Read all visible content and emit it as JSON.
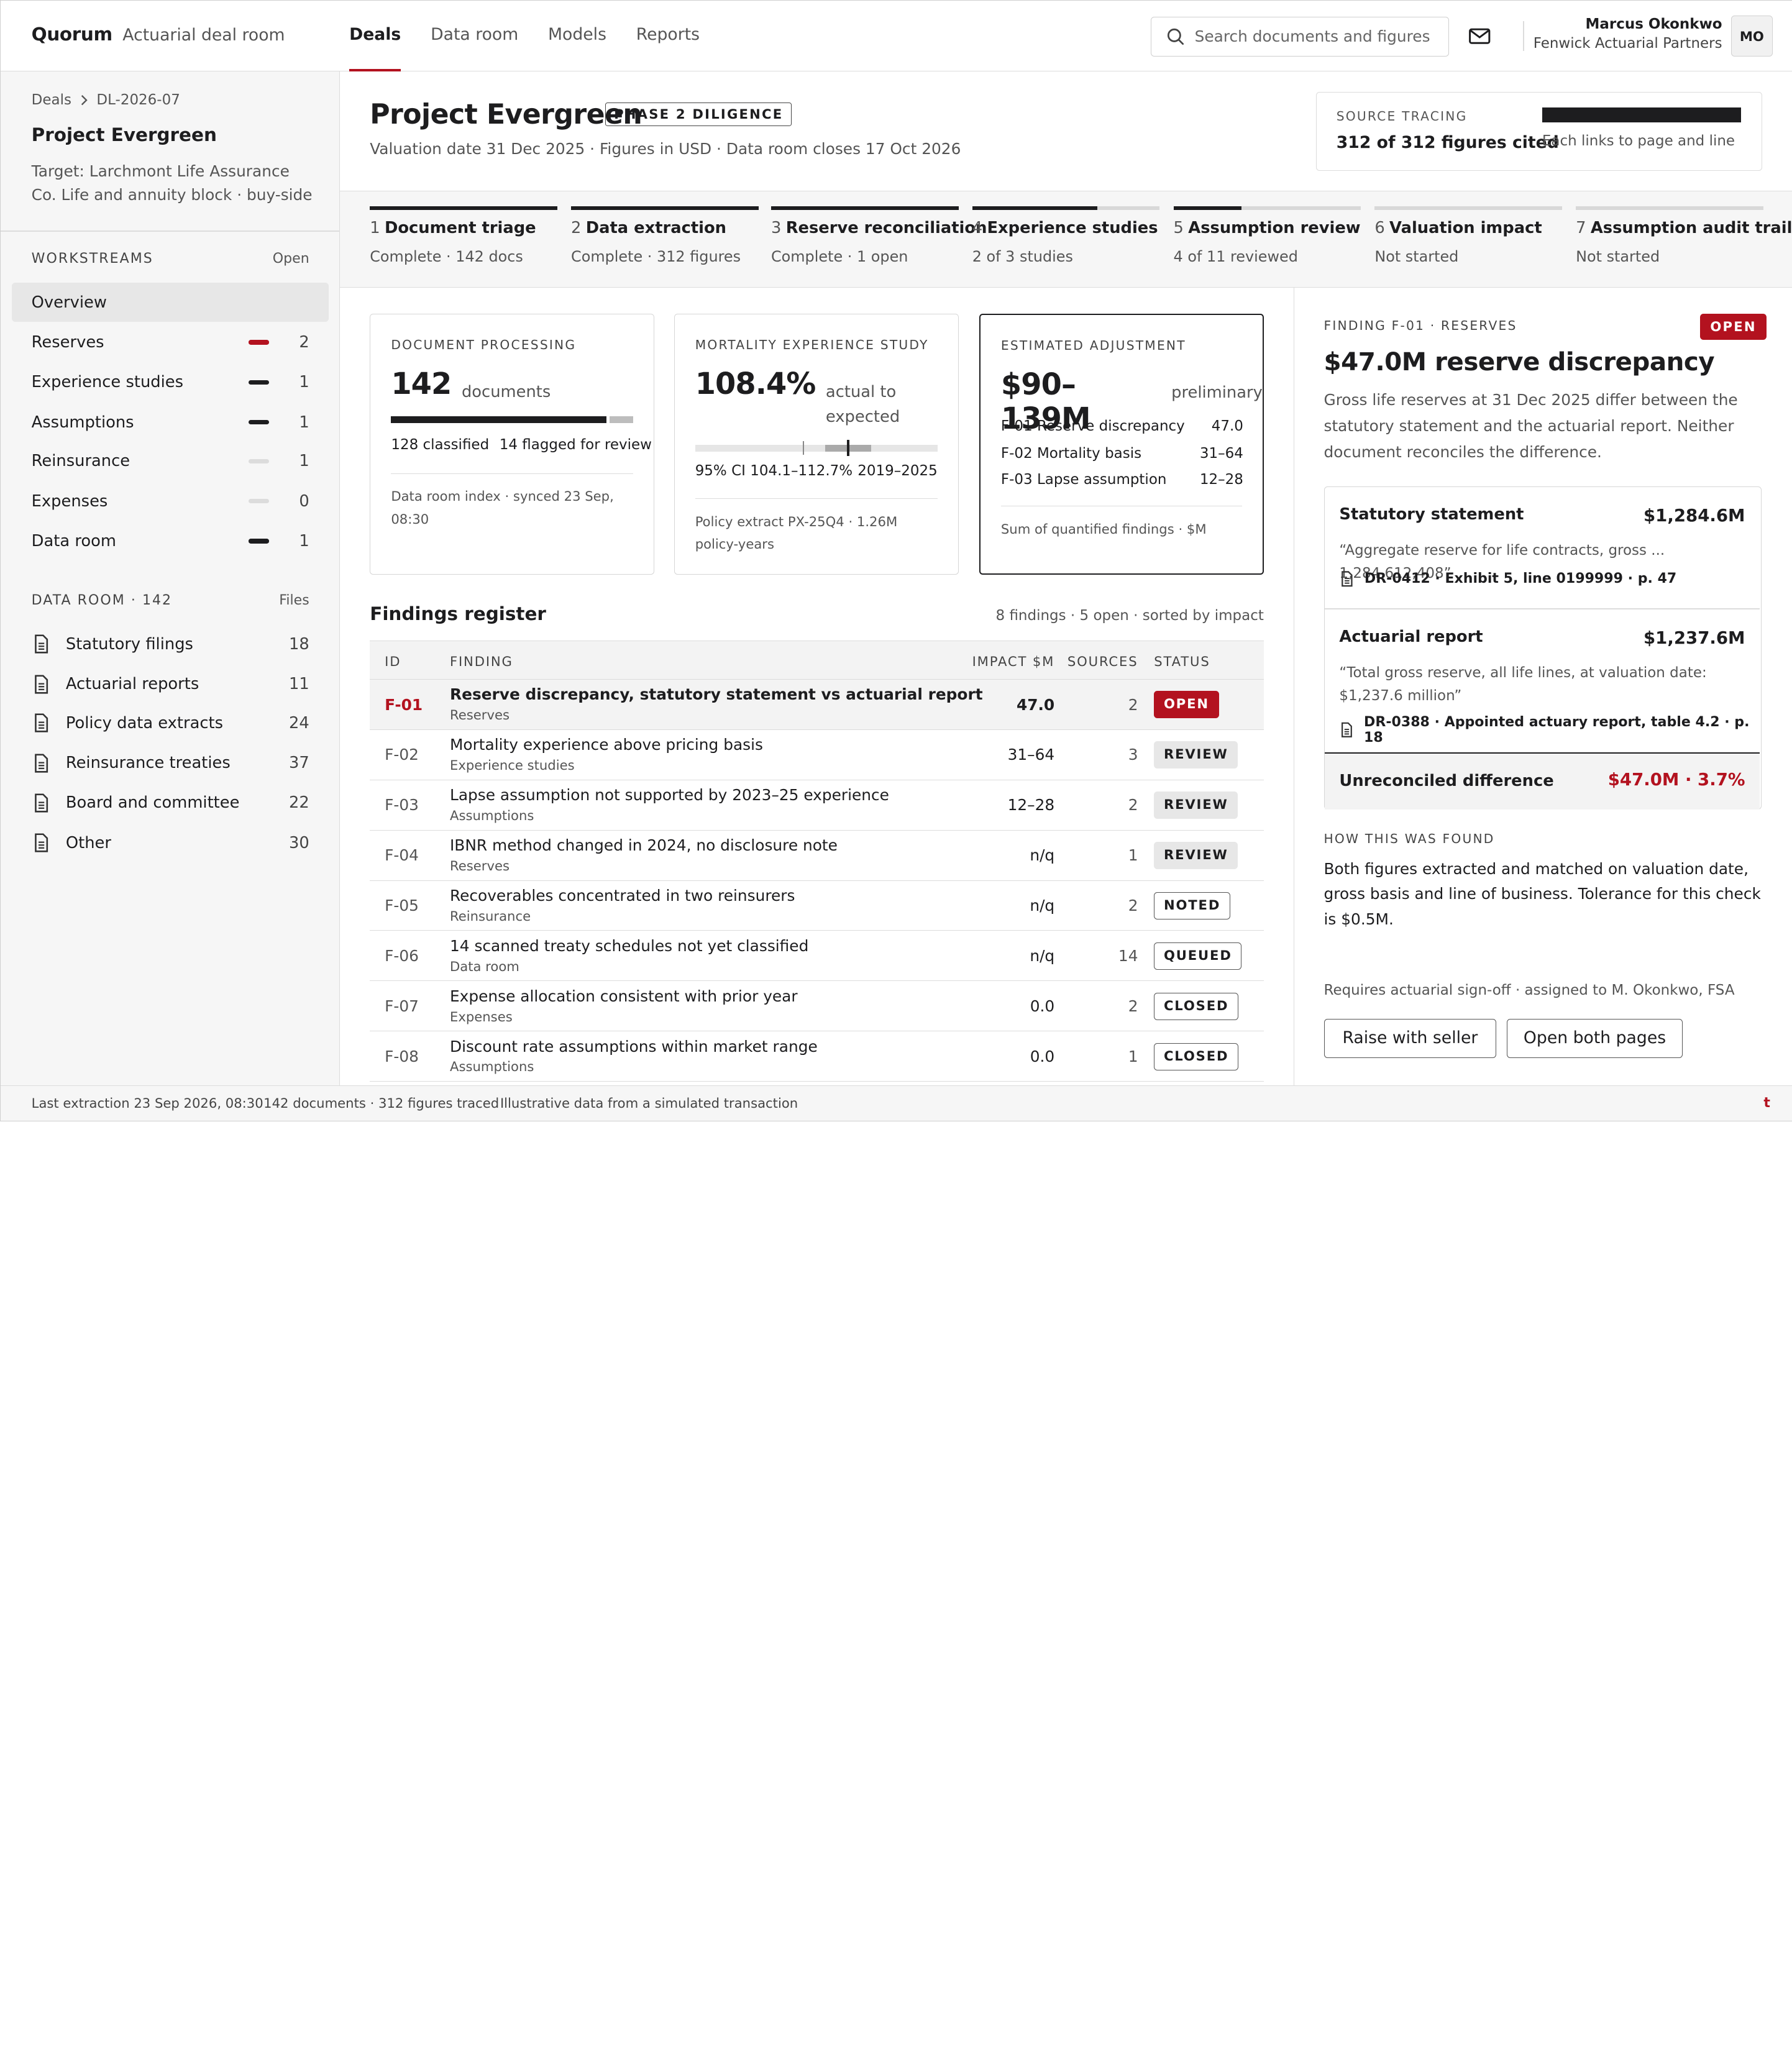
{
  "brand": {
    "name": "Quorum",
    "subtitle": "Actuarial deal room"
  },
  "nav": [
    {
      "label": "Deals",
      "active": true
    },
    {
      "label": "Data room"
    },
    {
      "label": "Models"
    },
    {
      "label": "Reports"
    }
  ],
  "search": {
    "placeholder": "Search documents and figures"
  },
  "user": {
    "name": "Marcus Okonkwo",
    "org": "Fenwick Actuarial Partners",
    "initials": "MO"
  },
  "colors": {
    "accent": "#b3121f",
    "ink": "#1d1d1f",
    "muted": "#555555",
    "panel": "#f6f6f6"
  },
  "sidebar": {
    "breadcrumb": [
      "Deals",
      "DL-2026-07"
    ],
    "project": "Project Evergreen",
    "target": "Target: Larchmont Life Assurance Co. Life and annuity block · buy-side",
    "workstreams": {
      "title": "WORKSTREAMS",
      "action": "Open",
      "items": [
        {
          "label": "Overview",
          "active": true
        },
        {
          "label": "Reserves",
          "count": "2",
          "indicator": "#b3121f"
        },
        {
          "label": "Experience studies",
          "count": "1",
          "indicator": "#1d1d1f"
        },
        {
          "label": "Assumptions",
          "count": "1",
          "indicator": "#1d1d1f"
        },
        {
          "label": "Reinsurance",
          "count": "1",
          "indicator": "#dcdcdc"
        },
        {
          "label": "Expenses",
          "count": "0",
          "indicator": "#dcdcdc"
        },
        {
          "label": "Data room",
          "count": "1",
          "indicator": "#1d1d1f"
        }
      ]
    },
    "dataroom": {
      "title": "DATA ROOM · 142",
      "action": "Files",
      "items": [
        {
          "label": "Statutory filings",
          "count": "18"
        },
        {
          "label": "Actuarial reports",
          "count": "11"
        },
        {
          "label": "Policy data extracts",
          "count": "24"
        },
        {
          "label": "Reinsurance treaties",
          "count": "37"
        },
        {
          "label": "Board and committee",
          "count": "22"
        },
        {
          "label": "Other",
          "count": "30"
        }
      ]
    }
  },
  "header": {
    "title": "Project Evergreen",
    "phase": "PHASE 2 DILIGENCE",
    "subtitle": "Valuation date 31 Dec 2025 · Figures in USD · Data room closes 17 Oct 2026",
    "source": {
      "label": "SOURCE TRACING",
      "value": "312 of 312 figures cited",
      "note": "Each links to page and line",
      "fraction": 1.0
    }
  },
  "steps": [
    {
      "num": "1",
      "name": "Document triage",
      "status": "Complete · 142 docs",
      "progress": 1.0
    },
    {
      "num": "2",
      "name": "Data extraction",
      "status": "Complete · 312 figures",
      "progress": 1.0
    },
    {
      "num": "3",
      "name": "Reserve reconciliation",
      "status": "Complete · 1 open",
      "progress": 1.0
    },
    {
      "num": "4",
      "name": "Experience studies",
      "status": "2 of 3 studies",
      "progress": 0.667
    },
    {
      "num": "5",
      "name": "Assumption review",
      "status": "4 of 11 reviewed",
      "progress": 0.364
    },
    {
      "num": "6",
      "name": "Valuation impact",
      "status": "Not started",
      "progress": 0
    },
    {
      "num": "7",
      "name": "Assumption audit trail",
      "status": "Not started",
      "progress": 0
    }
  ],
  "cards": {
    "processing": {
      "label": "DOCUMENT PROCESSING",
      "value": "142",
      "unit": "documents",
      "classified": 128,
      "flagged": 14,
      "classified_text": "128 classified",
      "flagged_text": "14 flagged for review",
      "foot": "Data room index · synced 23 Sep, 08:30"
    },
    "mortality": {
      "label": "MORTALITY EXPERIENCE STUDY",
      "value": "108.4%",
      "unit": "actual to expected",
      "ci_text": "95% CI 104.1–112.7%",
      "period": "2019–2025",
      "foot": "Policy extract PX-25Q4 · 1.26M policy-years",
      "estimate": 108.4,
      "ci_low": 104.1,
      "ci_high": 112.7,
      "reference": 100
    },
    "adjustment": {
      "label": "ESTIMATED ADJUSTMENT",
      "value": "$90–139M",
      "unit": "preliminary",
      "rows": [
        {
          "label": "F-01 Reserve discrepancy",
          "value": "47.0"
        },
        {
          "label": "F-02 Mortality basis",
          "value": "31–64"
        },
        {
          "label": "F-03 Lapse assumption",
          "value": "12–28"
        }
      ],
      "foot": "Sum of quantified findings · $M"
    }
  },
  "findings": {
    "title": "Findings register",
    "meta": "8 findings · 5 open · sorted by impact",
    "columns": {
      "id": "ID",
      "finding": "FINDING",
      "impact": "IMPACT $M",
      "sources": "SOURCES",
      "status": "STATUS"
    },
    "rows": [
      {
        "id": "F-01",
        "title": "Reserve discrepancy, statutory statement vs actuarial report",
        "area": "Reserves",
        "impact": "47.0",
        "sources": "2",
        "status": "OPEN",
        "kind": "open",
        "selected": true
      },
      {
        "id": "F-02",
        "title": "Mortality experience above pricing basis",
        "area": "Experience studies",
        "impact": "31–64",
        "sources": "3",
        "status": "REVIEW",
        "kind": "review"
      },
      {
        "id": "F-03",
        "title": "Lapse assumption not supported by 2023–25 experience",
        "area": "Assumptions",
        "impact": "12–28",
        "sources": "2",
        "status": "REVIEW",
        "kind": "review"
      },
      {
        "id": "F-04",
        "title": "IBNR method changed in 2024, no disclosure note",
        "area": "Reserves",
        "impact": "n/q",
        "sources": "1",
        "status": "REVIEW",
        "kind": "review"
      },
      {
        "id": "F-05",
        "title": "Recoverables concentrated in two reinsurers",
        "area": "Reinsurance",
        "impact": "n/q",
        "sources": "2",
        "status": "NOTED",
        "kind": "outline"
      },
      {
        "id": "F-06",
        "title": "14 scanned treaty schedules not yet classified",
        "area": "Data room",
        "impact": "n/q",
        "sources": "14",
        "status": "QUEUED",
        "kind": "outline"
      },
      {
        "id": "F-07",
        "title": "Expense allocation consistent with prior year",
        "area": "Expenses",
        "impact": "0.0",
        "sources": "2",
        "status": "CLOSED",
        "kind": "outline"
      },
      {
        "id": "F-08",
        "title": "Discount rate assumptions within market range",
        "area": "Assumptions",
        "impact": "0.0",
        "sources": "1",
        "status": "CLOSED",
        "kind": "outline"
      }
    ]
  },
  "detail": {
    "label": "FINDING F-01 · RESERVES",
    "badge": "OPEN",
    "title": "$47.0M reserve discrepancy",
    "description": "Gross life reserves at 31 Dec 2025 differ between the statutory statement and the actuarial report. Neither document reconciles the difference.",
    "statutory": {
      "label": "Statutory statement",
      "amount": "$1,284.6M",
      "quote": "“Aggregate reserve for life contracts, gross ... 1,284,612,408”",
      "ref": "DR-0412 · Exhibit 5, line 0199999 · p. 47"
    },
    "actuarial": {
      "label": "Actuarial report",
      "amount": "$1,237.6M",
      "quote": "“Total gross reserve, all life lines, at valuation date: $1,237.6 million”",
      "ref": "DR-0388 · Appointed actuary report, table 4.2 · p. 18"
    },
    "difference": {
      "label": "Unreconciled difference",
      "value": "$47.0M · 3.7%"
    },
    "how_label": "HOW THIS WAS FOUND",
    "how_text": "Both figures extracted and matched on valuation date, gross basis and line of business. Tolerance for this check is $0.5M.",
    "signoff": "Requires actuarial sign-off · assigned to M. Okonkwo, FSA",
    "buttons": {
      "raise": "Raise with seller",
      "open_pages": "Open both pages"
    }
  },
  "status": {
    "extraction": "Last extraction 23 Sep 2026, 08:30",
    "counts": "142 documents · 312 figures traced",
    "disclaimer": "Illustrative data from a simulated transaction",
    "mark": "t"
  }
}
